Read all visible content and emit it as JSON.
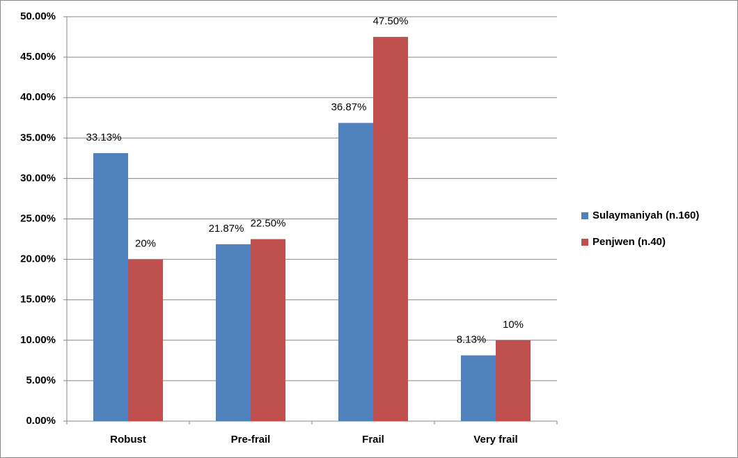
{
  "chart_data": {
    "type": "bar",
    "categories": [
      "Robust",
      "Pre-frail",
      "Frail",
      "Very frail"
    ],
    "series": [
      {
        "name": "Sulaymaniyah (n.160)",
        "color": "#4f81bd",
        "values": [
          33.13,
          21.87,
          36.87,
          8.13
        ],
        "value_labels": [
          "33.13%",
          "21.87%",
          "36.87%",
          "8.13%"
        ]
      },
      {
        "name": "Penjwen (n.40)",
        "color": "#c0504d",
        "values": [
          20,
          22.5,
          47.5,
          10
        ],
        "value_labels": [
          "20%",
          "22.50%",
          "47.50%",
          "10%"
        ]
      }
    ],
    "ylim": [
      0,
      50
    ],
    "yticks": [
      {
        "value": 0,
        "label": "0.00%"
      },
      {
        "value": 5,
        "label": "5.00%"
      },
      {
        "value": 10,
        "label": "10.00%"
      },
      {
        "value": 15,
        "label": "15.00%"
      },
      {
        "value": 20,
        "label": "20.00%"
      },
      {
        "value": 25,
        "label": "25.00%"
      },
      {
        "value": 30,
        "label": "30.00%"
      },
      {
        "value": 35,
        "label": "35.00%"
      },
      {
        "value": 40,
        "label": "40.00%"
      },
      {
        "value": 45,
        "label": "45.00%"
      },
      {
        "value": 50,
        "label": "50.00%"
      }
    ],
    "grid": true,
    "legend": "right"
  }
}
